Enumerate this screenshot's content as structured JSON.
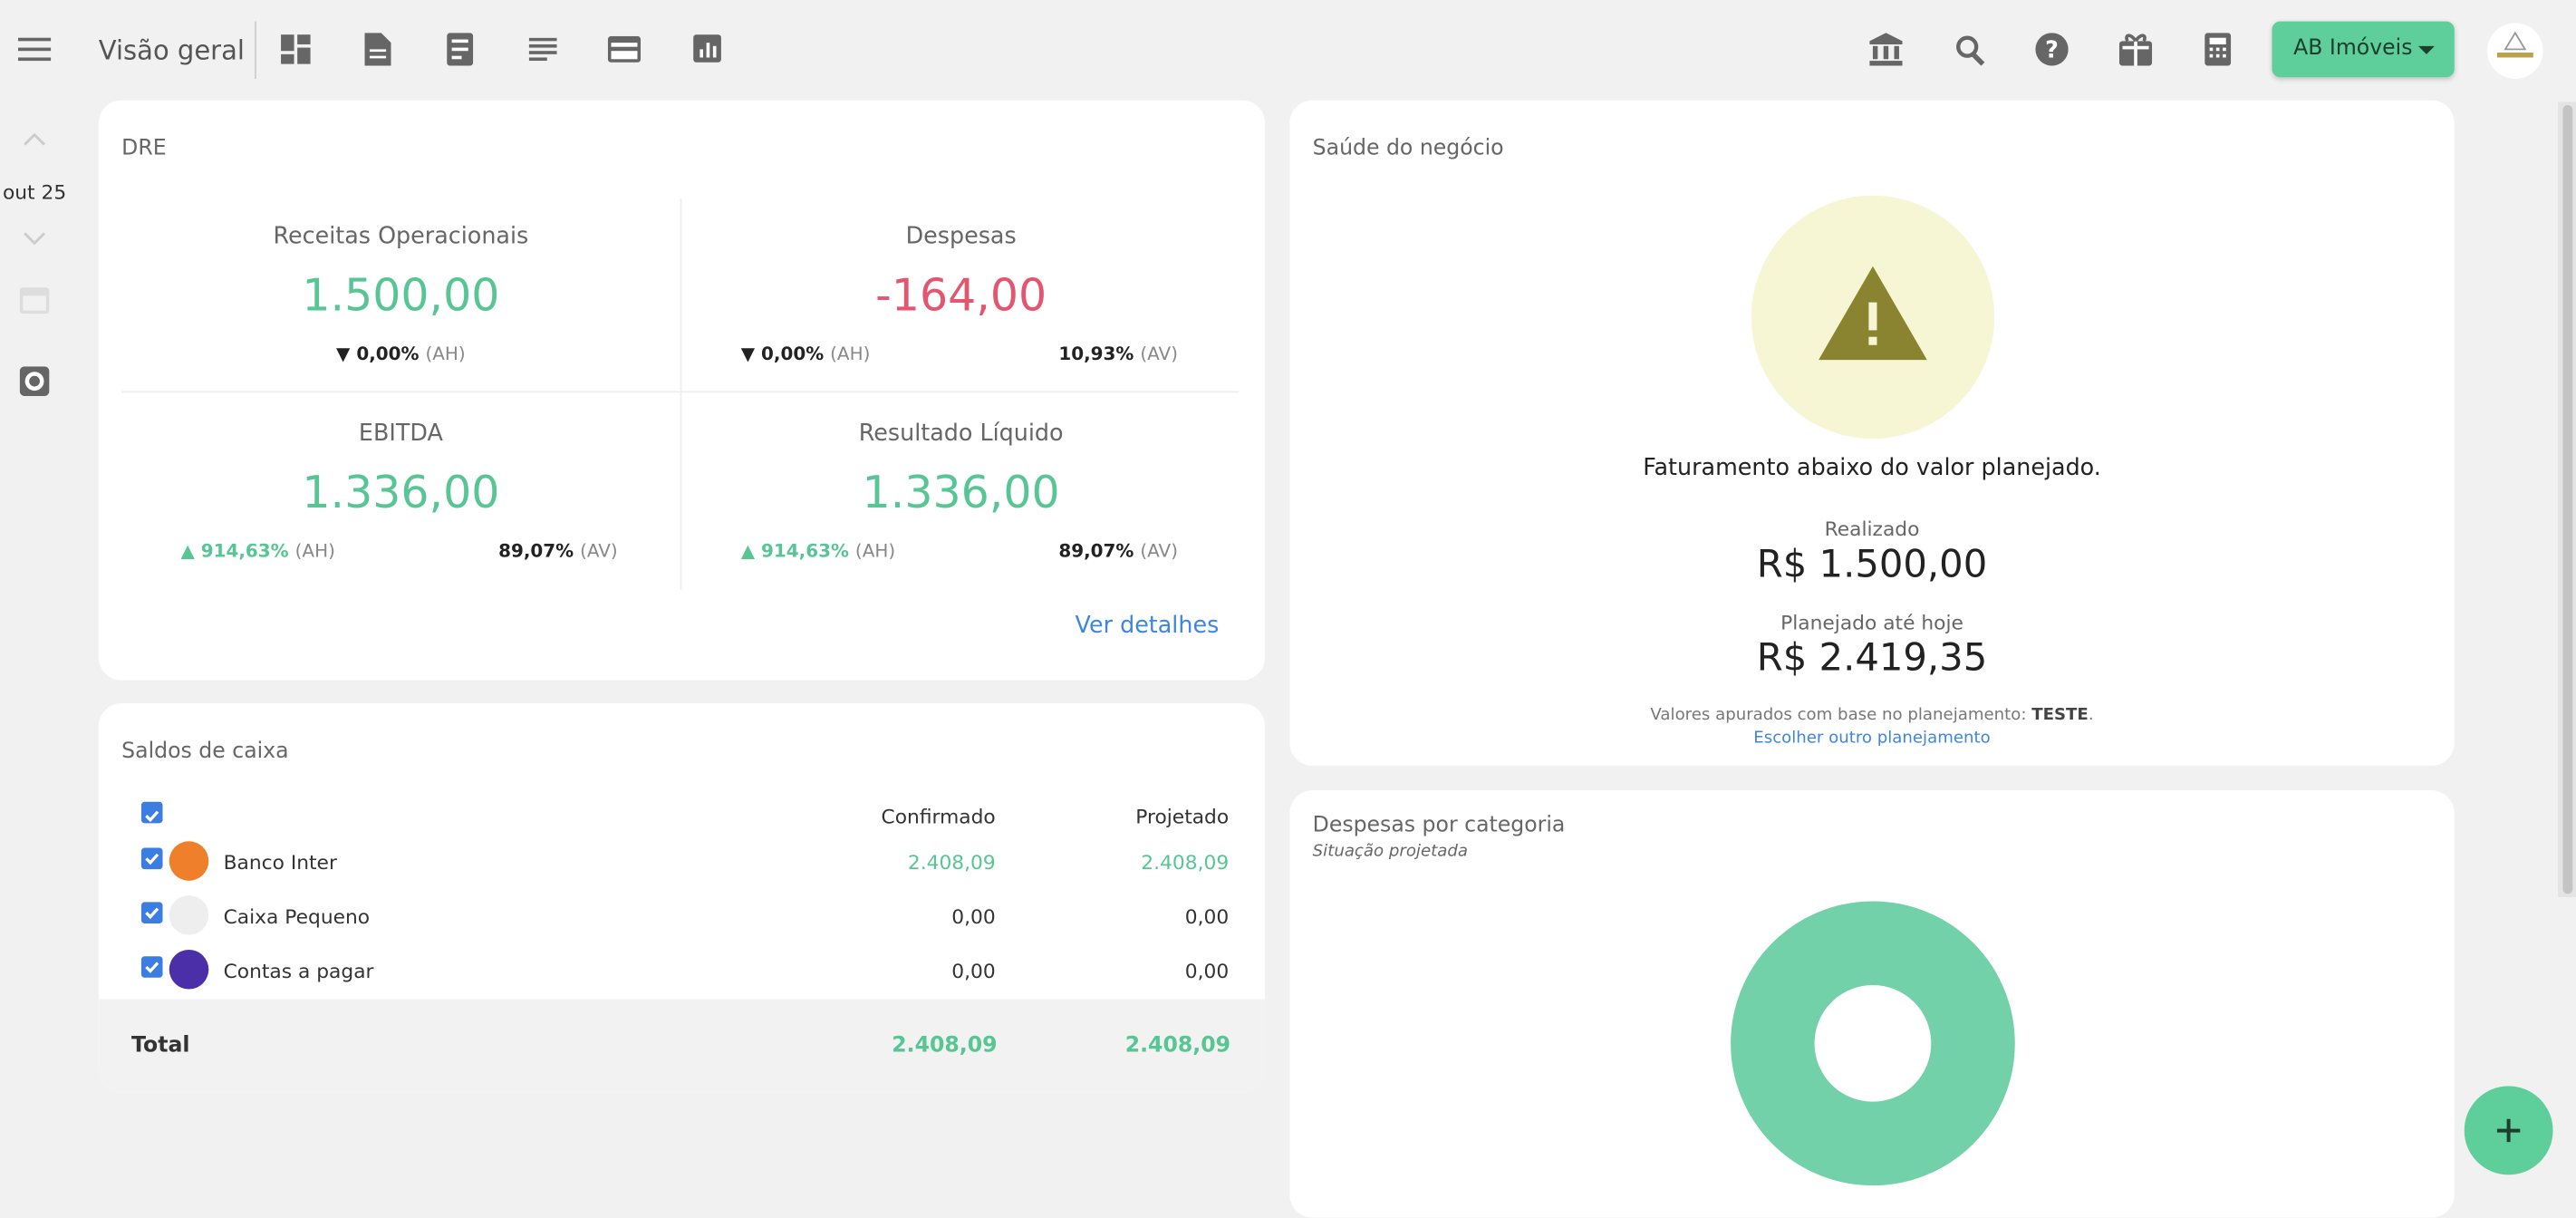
{
  "header": {
    "title": "Visão geral",
    "company": "AB Imóveis"
  },
  "sidebar": {
    "period": "out 25"
  },
  "dre": {
    "title": "DRE",
    "items": [
      {
        "label": "Receitas Operacionais",
        "value": "1.500,00",
        "ah": "▼ 0,00%",
        "ah_unit": "(AH)"
      },
      {
        "label": "Despesas",
        "value": "-164,00",
        "ah": "▼ 0,00%",
        "ah_unit": "(AH)",
        "av": "10,93%",
        "av_unit": "(AV)"
      },
      {
        "label": "EBITDA",
        "value": "1.336,00",
        "ah": "▲ 914,63%",
        "ah_unit": "(AH)",
        "av": "89,07%",
        "av_unit": "(AV)"
      },
      {
        "label": "Resultado Líquido",
        "value": "1.336,00",
        "ah": "▲ 914,63%",
        "ah_unit": "(AH)",
        "av": "89,07%",
        "av_unit": "(AV)"
      }
    ],
    "link": "Ver detalhes"
  },
  "saldos": {
    "title": "Saldos de caixa",
    "columns": [
      "Confirmado",
      "Projetado"
    ],
    "rows": [
      {
        "name": "Banco Inter",
        "confirmed": "2.408,09",
        "projected": "2.408,09"
      },
      {
        "name": "Caixa Pequeno",
        "confirmed": "0,00",
        "projected": "0,00"
      },
      {
        "name": "Contas a pagar",
        "confirmed": "0,00",
        "projected": "0,00"
      }
    ],
    "total": {
      "label": "Total",
      "confirmed": "2.408,09",
      "projected": "2.408,09"
    }
  },
  "saude": {
    "title": "Saúde do negócio",
    "message": "Faturamento abaixo do valor planejado.",
    "realizado_label": "Realizado",
    "realizado": "R$ 1.500,00",
    "planejado_label": "Planejado até hoje",
    "planejado": "R$ 2.419,35",
    "note": "Valores apurados com base no planejamento:",
    "note_bold": "TESTE",
    "note_end": ".",
    "link": "Escolher outro planejamento"
  },
  "despesas": {
    "title": "Despesas por categoria",
    "subtitle": "Situação projetada"
  }
}
